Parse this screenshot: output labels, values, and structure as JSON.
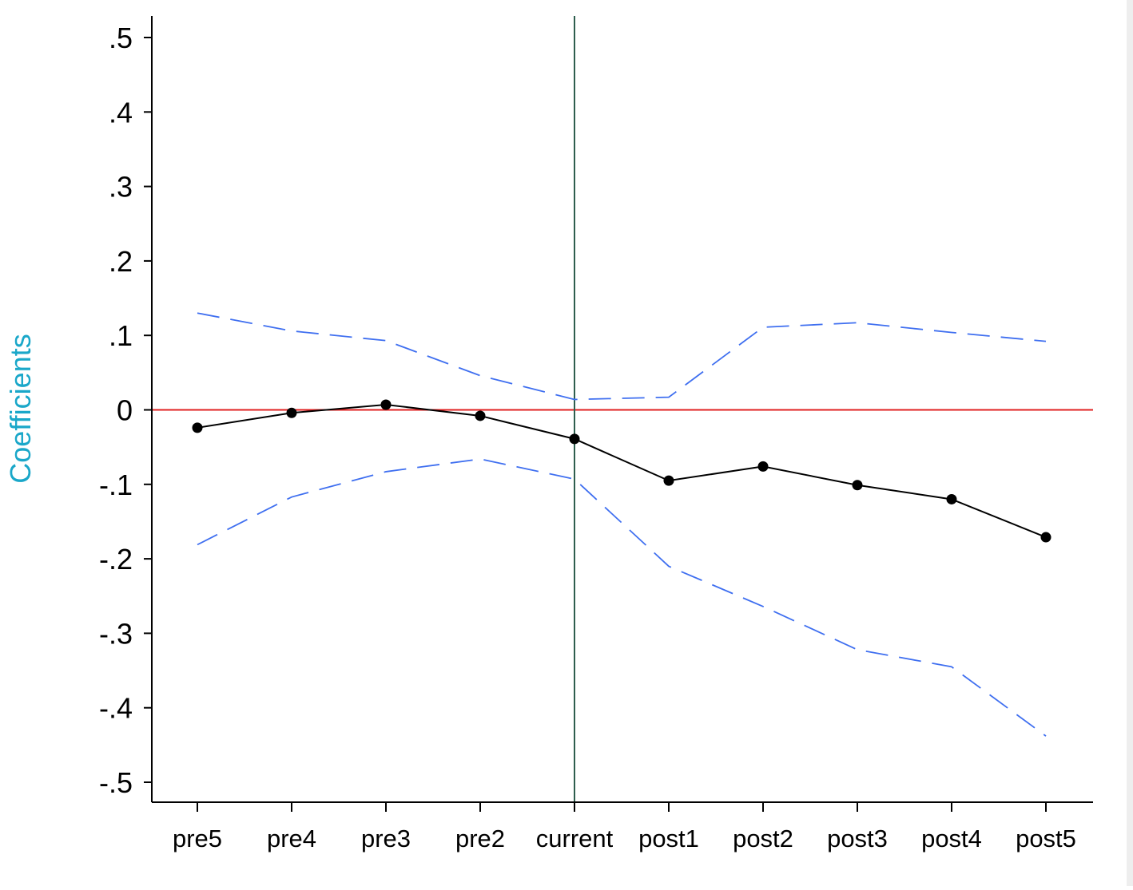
{
  "chart_data": {
    "type": "line",
    "title": "",
    "xlabel": "",
    "ylabel": "Coefficients",
    "categories": [
      "pre5",
      "pre4",
      "pre3",
      "pre2",
      "current",
      "post1",
      "post2",
      "post3",
      "post4",
      "post5"
    ],
    "ylim": [
      -0.5,
      0.5
    ],
    "yticks": [
      0.5,
      0.4,
      0.3,
      0.2,
      0.1,
      0,
      -0.1,
      -0.2,
      -0.3,
      -0.4,
      -0.5
    ],
    "ytick_labels": [
      ".5",
      ".4",
      ".3",
      ".2",
      ".1",
      "0",
      "-.1",
      "-.2",
      "-.3",
      "-.4",
      "-.5"
    ],
    "series": [
      {
        "role": "coefficient",
        "values": [
          -0.024,
          -0.004,
          0.007,
          -0.008,
          -0.039,
          -0.095,
          -0.076,
          -0.101,
          -0.12,
          -0.171
        ],
        "color": "#000000",
        "style": "solid-with-markers"
      },
      {
        "role": "upper-ci",
        "values": [
          0.13,
          0.106,
          0.093,
          0.046,
          0.014,
          0.017,
          0.111,
          0.117,
          0.104,
          0.092
        ],
        "color": "#3f6ff0",
        "style": "dashed"
      },
      {
        "role": "lower-ci",
        "values": [
          -0.181,
          -0.117,
          -0.083,
          -0.066,
          -0.093,
          -0.21,
          -0.264,
          -0.322,
          -0.345,
          -0.438
        ],
        "color": "#3f6ff0",
        "style": "dashed"
      }
    ],
    "reference_lines": {
      "horizontal_zero": {
        "value": 0,
        "color": "#e02020"
      },
      "vertical_at": {
        "category": "current",
        "color": "#2e5e4e"
      }
    },
    "colors": {
      "ylabel": "#1aa7c9",
      "axis": "#000000"
    },
    "grid": false,
    "legend": "none"
  }
}
